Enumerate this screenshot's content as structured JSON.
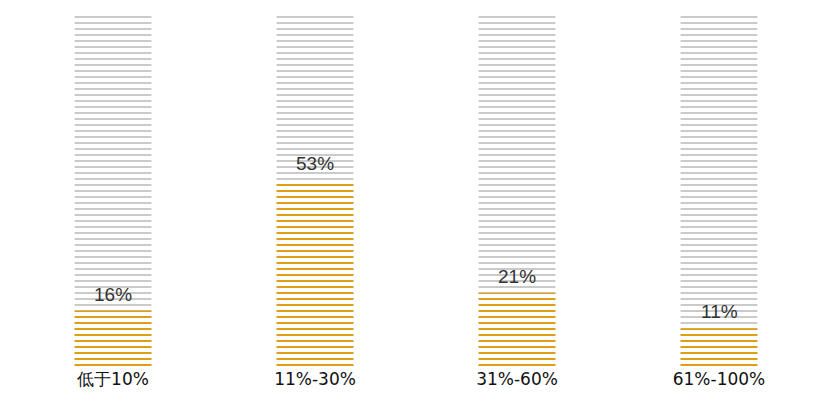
{
  "chart_data": {
    "type": "bar",
    "categories": [
      "低于10%",
      "11%-30%",
      "31%-60%",
      "61%-100%"
    ],
    "values": [
      16,
      53,
      21,
      11
    ],
    "value_labels": [
      "16%",
      "53%",
      "21%",
      "11%"
    ],
    "color": "#f5b400",
    "ylim": [
      0,
      100
    ],
    "data_labels": true,
    "tick_labels": "x",
    "grid": false
  }
}
